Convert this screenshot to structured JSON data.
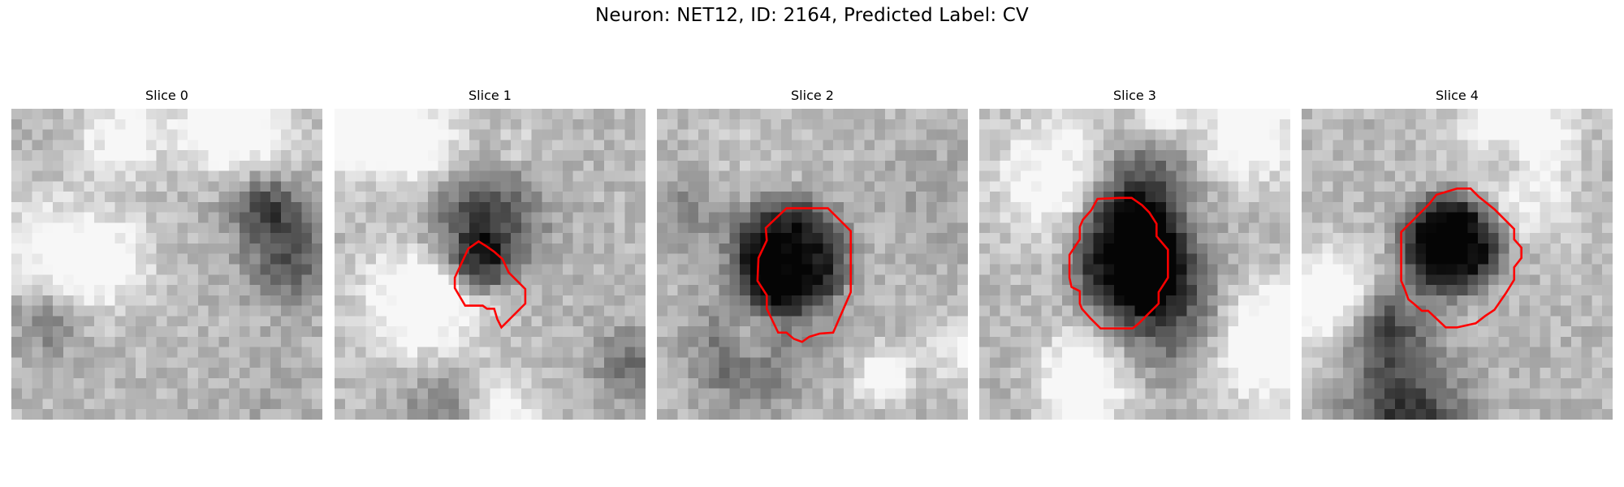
{
  "figure": {
    "suptitle": "Neuron: NET12, ID: 2164, Predicted Label: CV",
    "contour_color": "#ff0000"
  },
  "panels": [
    {
      "title": "Slice 0",
      "has_contour": false
    },
    {
      "title": "Slice 1",
      "has_contour": true
    },
    {
      "title": "Slice 2",
      "has_contour": true
    },
    {
      "title": "Slice 3",
      "has_contour": true
    },
    {
      "title": "Slice 4",
      "has_contour": true
    }
  ]
}
